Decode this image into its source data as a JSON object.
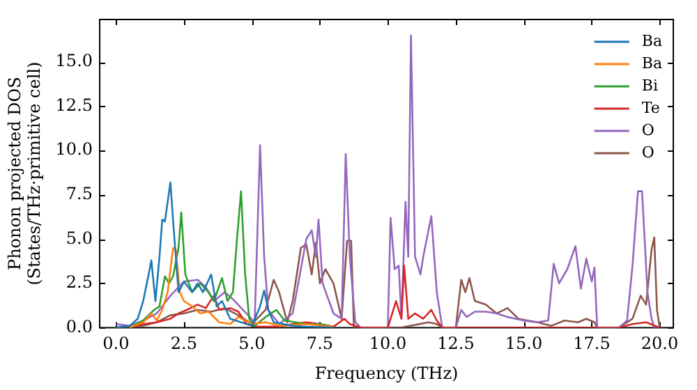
{
  "chart_data": {
    "type": "line",
    "xlabel": "Frequency (THz)",
    "ylabel": "Phonon projected DOS\n(States/THz·primitive cell)",
    "xlim": [
      -0.6,
      20.5
    ],
    "ylim": [
      0,
      17.4
    ],
    "xticks": [
      {
        "value": 0,
        "label": "0.0"
      },
      {
        "value": 2.5,
        "label": "2.5"
      },
      {
        "value": 5,
        "label": "5.0"
      },
      {
        "value": 7.5,
        "label": "7.5"
      },
      {
        "value": 10,
        "label": "10.0"
      },
      {
        "value": 12.5,
        "label": "12.5"
      },
      {
        "value": 15,
        "label": "15.0"
      },
      {
        "value": 17.5,
        "label": "17.5"
      },
      {
        "value": 20,
        "label": "20.0"
      }
    ],
    "yticks": [
      {
        "value": 0,
        "label": "0.0"
      },
      {
        "value": 2.5,
        "label": "2.5"
      },
      {
        "value": 5,
        "label": "5.0"
      },
      {
        "value": 7.5,
        "label": "7.5"
      },
      {
        "value": 10,
        "label": "10.0"
      },
      {
        "value": 12.5,
        "label": "12.5"
      },
      {
        "value": 15,
        "label": "15.0"
      }
    ],
    "grid": false,
    "legend": "top right",
    "marker": "none",
    "line_style": "solid",
    "series": [
      {
        "name": "Ba",
        "color": "#1f77b4",
        "x": [
          0,
          0.5,
          0.8,
          1.0,
          1.2,
          1.3,
          1.45,
          1.6,
          1.7,
          1.8,
          2.0,
          2.15,
          2.3,
          2.5,
          2.8,
          3.0,
          3.2,
          3.5,
          3.7,
          3.9,
          4.2,
          4.6,
          5.0,
          5.3,
          5.45,
          5.6,
          5.8,
          6.5,
          7.0,
          8
        ],
        "values": [
          0,
          0.1,
          0.5,
          1.5,
          3.0,
          3.8,
          1.5,
          4.0,
          6.1,
          6.0,
          8.2,
          5.0,
          2.0,
          2.6,
          2.0,
          2.5,
          2.0,
          3.0,
          1.2,
          1.5,
          0.5,
          0.3,
          0.1,
          1.2,
          2.1,
          1.0,
          0.3,
          0.1,
          0.05,
          0
        ]
      },
      {
        "name": "Ba",
        "color": "#ff7f0e",
        "x": [
          0.5,
          1.0,
          1.3,
          1.5,
          1.7,
          1.9,
          2.1,
          2.2,
          2.35,
          2.5,
          2.8,
          3.1,
          3.4,
          3.8,
          4.2,
          4.5,
          5.0,
          5.5,
          6,
          7,
          8
        ],
        "values": [
          0,
          0.3,
          0.8,
          0.4,
          1.0,
          2.0,
          4.5,
          4.4,
          2.0,
          1.5,
          1.2,
          0.8,
          0.9,
          0.3,
          0.2,
          0.6,
          0.2,
          0.3,
          0.1,
          0.2,
          0.05
        ]
      },
      {
        "name": "Bi",
        "color": "#2ca02c",
        "x": [
          0.5,
          1.0,
          1.4,
          1.6,
          1.8,
          1.95,
          2.1,
          2.3,
          2.4,
          2.55,
          2.8,
          3.1,
          3.4,
          3.6,
          3.9,
          4.1,
          4.3,
          4.45,
          4.6,
          4.75,
          4.9,
          5.1,
          5.5,
          5.9,
          6.2,
          7,
          7.5,
          8
        ],
        "values": [
          0,
          0.4,
          1.0,
          1.2,
          2.9,
          2.5,
          2.9,
          4.5,
          6.5,
          3.0,
          2.0,
          2.5,
          2.0,
          1.5,
          2.8,
          1.5,
          2.0,
          5.0,
          7.7,
          3.0,
          0.5,
          0.1,
          0.6,
          1.0,
          0.4,
          0.2,
          0.2,
          0.05
        ]
      },
      {
        "name": "Te",
        "color": "#d62728",
        "x": [
          0.5,
          1.0,
          1.5,
          2.0,
          2.3,
          2.6,
          3.0,
          3.3,
          3.6,
          3.8,
          4.2,
          4.5,
          4.8,
          5.2,
          6,
          6.5,
          7,
          7.5,
          8,
          8.4,
          8.6,
          9,
          10,
          10.3,
          10.5,
          10.6,
          10.75,
          11,
          11.3,
          11.6,
          11.8,
          12,
          17,
          18.5,
          19,
          19.5,
          20
        ],
        "values": [
          0,
          0.2,
          0.3,
          0.5,
          0.8,
          1.0,
          1.3,
          1.1,
          1.8,
          1.0,
          1.1,
          0.9,
          0.2,
          0.05,
          0.05,
          0.2,
          0.3,
          0.2,
          0.05,
          0.5,
          0.2,
          0,
          0,
          1.5,
          0.5,
          3.5,
          0.5,
          0.8,
          0.5,
          1.0,
          0.4,
          0,
          0,
          0,
          0.2,
          0.3,
          0
        ]
      },
      {
        "name": "O",
        "color": "#9467bd",
        "x": [
          0,
          0.5,
          1.0,
          1.5,
          2.0,
          2.5,
          3.0,
          3.3,
          3.6,
          4.0,
          4.3,
          4.8,
          5.1,
          5.3,
          5.45,
          5.6,
          6.0,
          6.5,
          7.0,
          7.2,
          7.35,
          7.45,
          7.6,
          8.0,
          8.3,
          8.45,
          8.6,
          8.8,
          9,
          10,
          10.1,
          10.25,
          10.4,
          10.5,
          10.65,
          10.75,
          10.85,
          11.0,
          11.2,
          11.3,
          11.6,
          11.8,
          12.0,
          12.5,
          12.7,
          12.9,
          13.2,
          13.6,
          14.0,
          14.4,
          15,
          15.5,
          15.9,
          16.1,
          16.3,
          16.6,
          16.9,
          17.1,
          17.3,
          17.5,
          17.6,
          17.7,
          18.5,
          18.8,
          19.0,
          19.2,
          19.35,
          19.55,
          19.7,
          19.8,
          20
        ],
        "values": [
          0.2,
          0.1,
          0.4,
          0.8,
          1.8,
          2.6,
          2.7,
          2.3,
          1.5,
          2.0,
          1.6,
          0.8,
          0.3,
          10.3,
          4.0,
          1.0,
          0.2,
          0.8,
          5.0,
          5.5,
          4.0,
          6.1,
          2.5,
          0.8,
          0.5,
          9.8,
          4.0,
          0.3,
          0,
          0,
          6.2,
          3.3,
          3.5,
          0.5,
          7.1,
          4.0,
          16.5,
          4.0,
          3.0,
          4.0,
          6.3,
          2.0,
          0,
          0,
          1.0,
          0.6,
          0.9,
          0.9,
          0.8,
          0.6,
          0.4,
          0.3,
          0.4,
          3.6,
          2.5,
          3.3,
          4.6,
          2.2,
          3.9,
          2.6,
          3.4,
          0,
          0,
          0.4,
          3.5,
          7.7,
          7.7,
          2.0,
          0.5,
          0,
          0
        ]
      },
      {
        "name": "O",
        "color": "#8c564b",
        "x": [
          0,
          1.0,
          1.5,
          2.0,
          2.5,
          3.0,
          3.5,
          4.0,
          4.5,
          5.0,
          5.5,
          5.8,
          6.0,
          6.3,
          6.5,
          6.8,
          7.0,
          7.2,
          7.35,
          7.5,
          7.7,
          8.0,
          8.3,
          8.5,
          8.65,
          8.75,
          10.5,
          11.5,
          11.8,
          12,
          12.5,
          12.7,
          12.85,
          13.0,
          13.2,
          13.6,
          14.0,
          14.4,
          14.8,
          15.5,
          16,
          16.5,
          17,
          17.3,
          17.6,
          17.7,
          18.5,
          19.0,
          19.3,
          19.5,
          19.7,
          19.8,
          19.9,
          20.0
        ],
        "values": [
          0,
          0.1,
          0.3,
          0.7,
          0.8,
          1.0,
          0.9,
          1.1,
          0.7,
          0.2,
          1.0,
          2.7,
          2.0,
          0.3,
          1.5,
          4.5,
          4.7,
          3.0,
          4.8,
          2.5,
          3.3,
          2.5,
          0.5,
          4.9,
          4.9,
          0,
          0,
          0.3,
          0.2,
          0,
          0,
          2.7,
          2.0,
          2.8,
          1.5,
          1.3,
          0.8,
          1.1,
          0.5,
          0.3,
          0.1,
          0.4,
          0.3,
          0.5,
          0.3,
          0,
          0,
          0.5,
          1.8,
          1.3,
          4.4,
          5.1,
          1.0,
          0
        ]
      }
    ]
  }
}
